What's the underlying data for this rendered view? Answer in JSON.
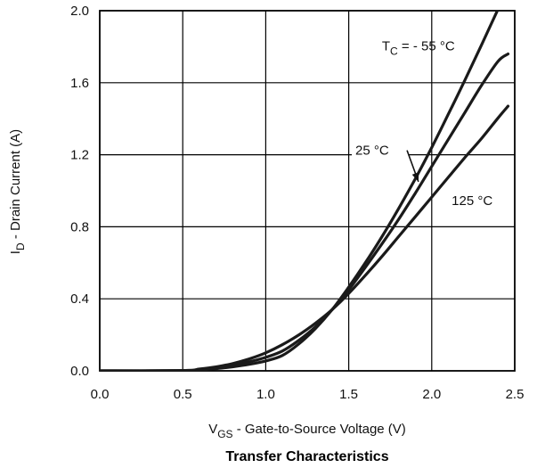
{
  "chart_data": {
    "type": "line",
    "title": "Transfer Characteristics",
    "xlabel": {
      "main": "V",
      "sub": "GS",
      "rest": " - Gate-to-Source Voltage (V)"
    },
    "ylabel": {
      "main": "I",
      "sub": "D",
      "rest": " - Drain Current (A)"
    },
    "xlim": [
      0.0,
      2.5
    ],
    "ylim": [
      0.0,
      2.0
    ],
    "xticks": [
      "0.0",
      "0.5",
      "1.0",
      "1.5",
      "2.0",
      "2.5"
    ],
    "yticks": [
      "0.0",
      "0.4",
      "0.8",
      "1.2",
      "1.6",
      "2.0"
    ],
    "grid": true,
    "series": [
      {
        "name": "TC = - 55 °C",
        "x": [
          0.0,
          0.5,
          0.6,
          0.7,
          0.8,
          0.9,
          1.0,
          1.1,
          1.2,
          1.3,
          1.4,
          1.5,
          1.6,
          1.7,
          1.8,
          1.9,
          2.0,
          2.1,
          2.2,
          2.3,
          2.4,
          2.45
        ],
        "y": [
          0.0,
          0.0,
          0.005,
          0.012,
          0.022,
          0.036,
          0.055,
          0.085,
          0.15,
          0.235,
          0.34,
          0.465,
          0.6,
          0.745,
          0.9,
          1.065,
          1.24,
          1.425,
          1.615,
          1.81,
          2.01,
          2.11
        ]
      },
      {
        "name": "25 °C",
        "x": [
          0.0,
          0.5,
          0.6,
          0.7,
          0.8,
          0.9,
          1.0,
          1.1,
          1.2,
          1.3,
          1.4,
          1.5,
          1.6,
          1.7,
          1.8,
          1.9,
          2.0,
          2.1,
          2.2,
          2.3,
          2.4,
          2.46
        ],
        "y": [
          0.0,
          0.0,
          0.007,
          0.017,
          0.032,
          0.05,
          0.075,
          0.11,
          0.17,
          0.245,
          0.34,
          0.45,
          0.575,
          0.705,
          0.84,
          0.985,
          1.135,
          1.285,
          1.435,
          1.585,
          1.72,
          1.76
        ]
      },
      {
        "name": "125 °C",
        "x": [
          0.0,
          0.5,
          0.6,
          0.7,
          0.8,
          0.9,
          1.0,
          1.1,
          1.2,
          1.3,
          1.4,
          1.5,
          1.6,
          1.7,
          1.8,
          1.9,
          2.0,
          2.1,
          2.2,
          2.3,
          2.4,
          2.46
        ],
        "y": [
          0.0,
          0.002,
          0.01,
          0.022,
          0.04,
          0.066,
          0.1,
          0.145,
          0.2,
          0.265,
          0.34,
          0.43,
          0.53,
          0.635,
          0.745,
          0.855,
          0.965,
          1.075,
          1.185,
          1.29,
          1.405,
          1.47
        ]
      }
    ],
    "annotations": [
      {
        "main": "T",
        "sub": "C",
        "rest": " = - 55 °C",
        "x": 1.7,
        "y": 1.78
      },
      {
        "main": "25 °C",
        "x": 1.54,
        "y": 1.2
      },
      {
        "main": "125 °C",
        "x": 2.12,
        "y": 0.92
      }
    ]
  }
}
